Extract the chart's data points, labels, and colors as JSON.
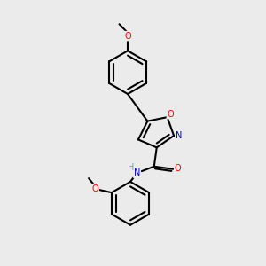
{
  "background_color": "#ebebeb",
  "bond_color": "#000000",
  "bond_width": 1.5,
  "atom_colors": {
    "O": "#ff0000",
    "N": "#0000cc",
    "C": "#000000",
    "H": "#5aadad"
  },
  "font_size": 7.0,
  "figure_size": [
    3.0,
    3.0
  ],
  "dpi": 100
}
